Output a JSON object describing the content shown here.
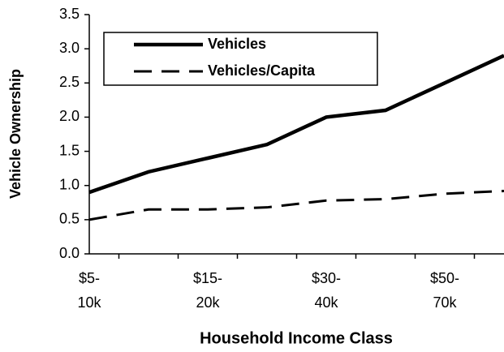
{
  "chart_data": {
    "type": "line",
    "x_label": "Household Income Class",
    "y_label": "Vehicle Ownership",
    "categories": [
      "$5-\n10k",
      null,
      "$15-\n20k",
      null,
      "$30-\n40k",
      null,
      "$50-\n70k",
      null
    ],
    "series": [
      {
        "name": "Vehicles",
        "color": "#000000",
        "dash": "solid",
        "values": [
          0.9,
          1.2,
          1.4,
          1.6,
          2.0,
          2.1,
          2.5,
          2.9
        ]
      },
      {
        "name": "Vehicles/Capita",
        "color": "#000000",
        "dash": "dashed",
        "values": [
          0.5,
          0.65,
          0.65,
          0.68,
          0.78,
          0.8,
          0.88,
          0.92
        ]
      }
    ],
    "ylim": [
      0,
      3.5
    ],
    "yticks": [
      {
        "value": 0,
        "label": "0.0"
      },
      0.5,
      {
        "value": 1,
        "label": "1.0"
      },
      1.5,
      {
        "value": 2,
        "label": "2.0"
      },
      2.5,
      {
        "value": 3,
        "label": "3.0"
      },
      3.5
    ],
    "legend": "top-left"
  }
}
